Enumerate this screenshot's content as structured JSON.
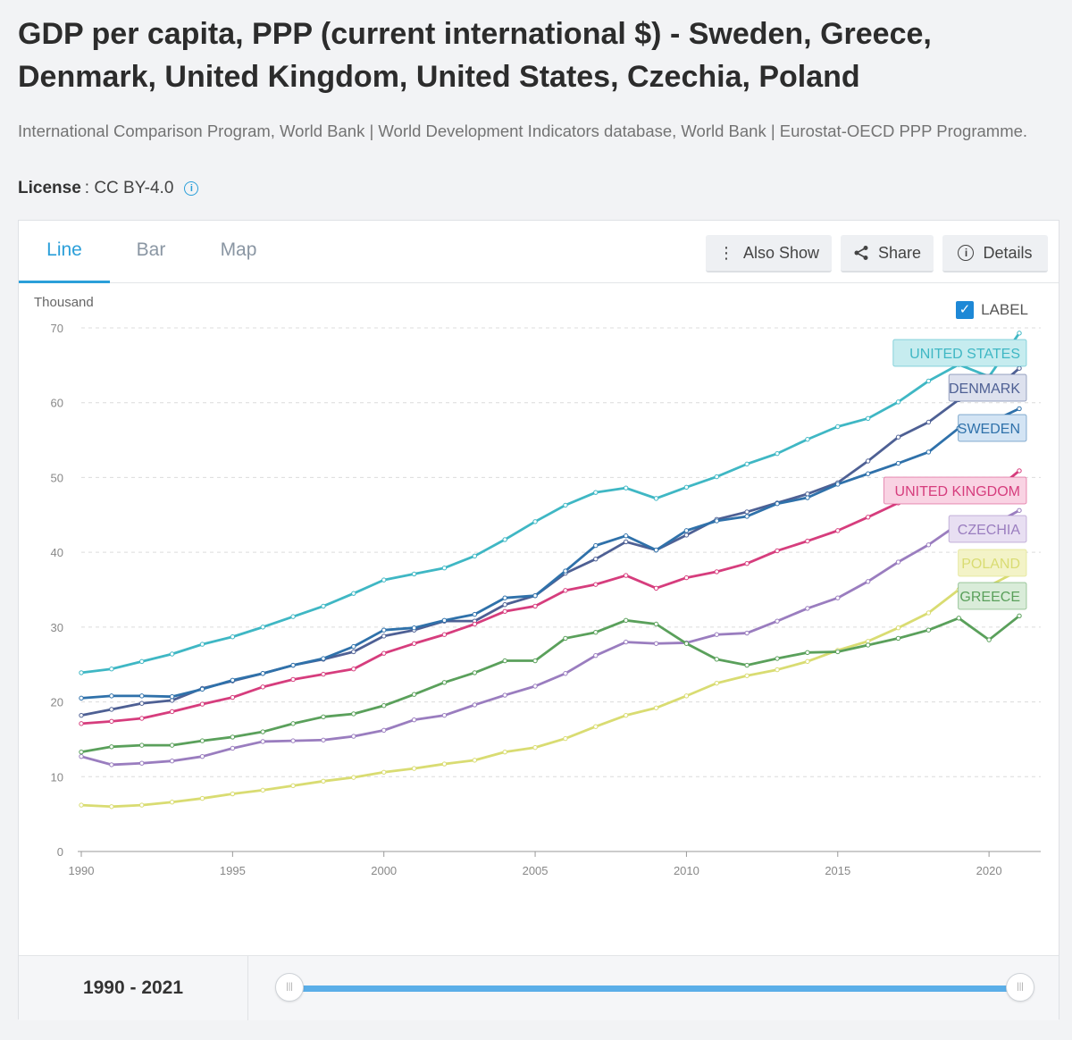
{
  "header": {
    "title": "GDP per capita, PPP (current international $) - Sweden, Greece, Denmark, United Kingdom, United States, Czechia, Poland",
    "source": "International Comparison Program, World Bank | World Development Indicators database, World Bank | Eurostat-OECD PPP Programme.",
    "license_label": "License",
    "license_value": ": CC BY-4.0",
    "info_icon": "info-icon"
  },
  "tabs": [
    {
      "label": "Line",
      "active": true
    },
    {
      "label": "Bar",
      "active": false
    },
    {
      "label": "Map",
      "active": false
    }
  ],
  "toolbar": {
    "also_show": "Also Show",
    "share": "Share",
    "details": "Details"
  },
  "label_toggle": {
    "label": "LABEL",
    "checked": true
  },
  "range": {
    "text": "1990 - 2021"
  },
  "chart_data": {
    "type": "line",
    "ylabel": "Thousand",
    "ylim": [
      0,
      70
    ],
    "yticks": [
      0,
      10,
      20,
      30,
      40,
      50,
      60,
      70
    ],
    "xlim": [
      1990,
      2021
    ],
    "xticks": [
      1990,
      1995,
      2000,
      2005,
      2010,
      2015,
      2020
    ],
    "grid": true,
    "x": [
      1990,
      1991,
      1992,
      1993,
      1994,
      1995,
      1996,
      1997,
      1998,
      1999,
      2000,
      2001,
      2002,
      2003,
      2004,
      2005,
      2006,
      2007,
      2008,
      2009,
      2010,
      2011,
      2012,
      2013,
      2014,
      2015,
      2016,
      2017,
      2018,
      2019,
      2020,
      2021
    ],
    "series": [
      {
        "name": "UNITED STATES",
        "color": "#3fb7c4",
        "label_bg": "#c6ecef",
        "values": [
          23.9,
          24.4,
          25.4,
          26.4,
          27.7,
          28.7,
          30.0,
          31.4,
          32.8,
          34.5,
          36.3,
          37.1,
          37.9,
          39.5,
          41.7,
          44.1,
          46.3,
          48.0,
          48.6,
          47.2,
          48.7,
          50.1,
          51.8,
          53.2,
          55.1,
          56.8,
          57.9,
          60.1,
          62.9,
          65.1,
          63.5,
          69.3
        ]
      },
      {
        "name": "DENMARK",
        "color": "#4e6094",
        "label_bg": "#dde1ee",
        "values": [
          18.2,
          19.0,
          19.8,
          20.2,
          21.8,
          22.8,
          23.8,
          24.9,
          25.7,
          26.7,
          28.8,
          29.6,
          30.8,
          30.8,
          33.0,
          34.2,
          37.2,
          39.1,
          41.4,
          40.3,
          42.3,
          44.4,
          45.4,
          46.6,
          47.8,
          49.3,
          52.2,
          55.4,
          57.4,
          60.4,
          61.1,
          64.6
        ]
      },
      {
        "name": "SWEDEN",
        "color": "#2f71aa",
        "label_bg": "#d3e4f4",
        "values": [
          20.5,
          20.8,
          20.8,
          20.7,
          21.7,
          22.9,
          23.8,
          24.9,
          25.8,
          27.4,
          29.6,
          29.9,
          30.9,
          31.7,
          33.9,
          34.2,
          37.5,
          40.9,
          42.2,
          40.3,
          42.9,
          44.2,
          44.8,
          46.5,
          47.3,
          49.1,
          50.5,
          51.9,
          53.4,
          56.6,
          57.3,
          59.2
        ]
      },
      {
        "name": "UNITED KINGDOM",
        "color": "#d63d7d",
        "label_bg": "#f9d3e3",
        "values": [
          17.1,
          17.4,
          17.8,
          18.7,
          19.7,
          20.6,
          22.0,
          23.0,
          23.7,
          24.4,
          26.5,
          27.8,
          29.0,
          30.4,
          32.1,
          32.8,
          34.9,
          35.7,
          36.9,
          35.2,
          36.6,
          37.4,
          38.5,
          40.2,
          41.5,
          42.9,
          44.7,
          46.6,
          47.8,
          49.0,
          47.6,
          50.9
        ]
      },
      {
        "name": "CZECHIA",
        "color": "#9a7dbf",
        "label_bg": "#e8dff2",
        "values": [
          12.7,
          11.6,
          11.8,
          12.1,
          12.7,
          13.8,
          14.7,
          14.8,
          14.9,
          15.4,
          16.2,
          17.6,
          18.2,
          19.6,
          20.9,
          22.1,
          23.8,
          26.2,
          28.0,
          27.8,
          27.9,
          29.0,
          29.2,
          30.8,
          32.5,
          33.9,
          36.1,
          38.7,
          41.0,
          43.8,
          43.4,
          45.6
        ]
      },
      {
        "name": "POLAND",
        "color": "#d9dc72",
        "label_bg": "#f3f3c7",
        "values": [
          6.2,
          6.0,
          6.2,
          6.6,
          7.1,
          7.7,
          8.2,
          8.8,
          9.4,
          9.9,
          10.6,
          11.1,
          11.7,
          12.2,
          13.3,
          13.9,
          15.1,
          16.7,
          18.2,
          19.2,
          20.8,
          22.5,
          23.5,
          24.3,
          25.4,
          26.9,
          28.1,
          29.9,
          31.9,
          35.0,
          35.5,
          37.6
        ]
      },
      {
        "name": "GREECE",
        "color": "#5aa05b",
        "label_bg": "#d9ecd9",
        "values": [
          13.3,
          14.0,
          14.2,
          14.2,
          14.8,
          15.3,
          16.0,
          17.1,
          18.0,
          18.4,
          19.5,
          21.0,
          22.6,
          23.9,
          25.5,
          25.5,
          28.5,
          29.3,
          30.9,
          30.4,
          27.8,
          25.7,
          24.9,
          25.8,
          26.6,
          26.7,
          27.6,
          28.5,
          29.6,
          31.2,
          28.3,
          31.5
        ]
      }
    ]
  }
}
